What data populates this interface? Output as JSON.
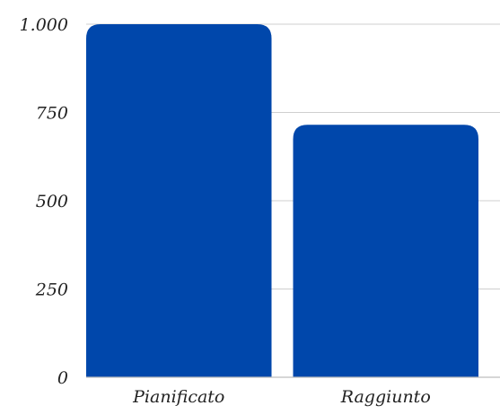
{
  "chart_data": {
    "type": "bar",
    "title": "",
    "xlabel": "",
    "ylabel": "",
    "categories": [
      "Pianificato",
      "Raggiunto"
    ],
    "values": [
      1000,
      715
    ],
    "ylim": [
      0,
      1000
    ],
    "yticks": [
      0,
      250,
      500,
      750,
      1000
    ],
    "ytick_labels": [
      "0",
      "250",
      "500",
      "750",
      "1.000"
    ],
    "grid": true,
    "legend": "none",
    "bar_color": "#0047AB"
  }
}
